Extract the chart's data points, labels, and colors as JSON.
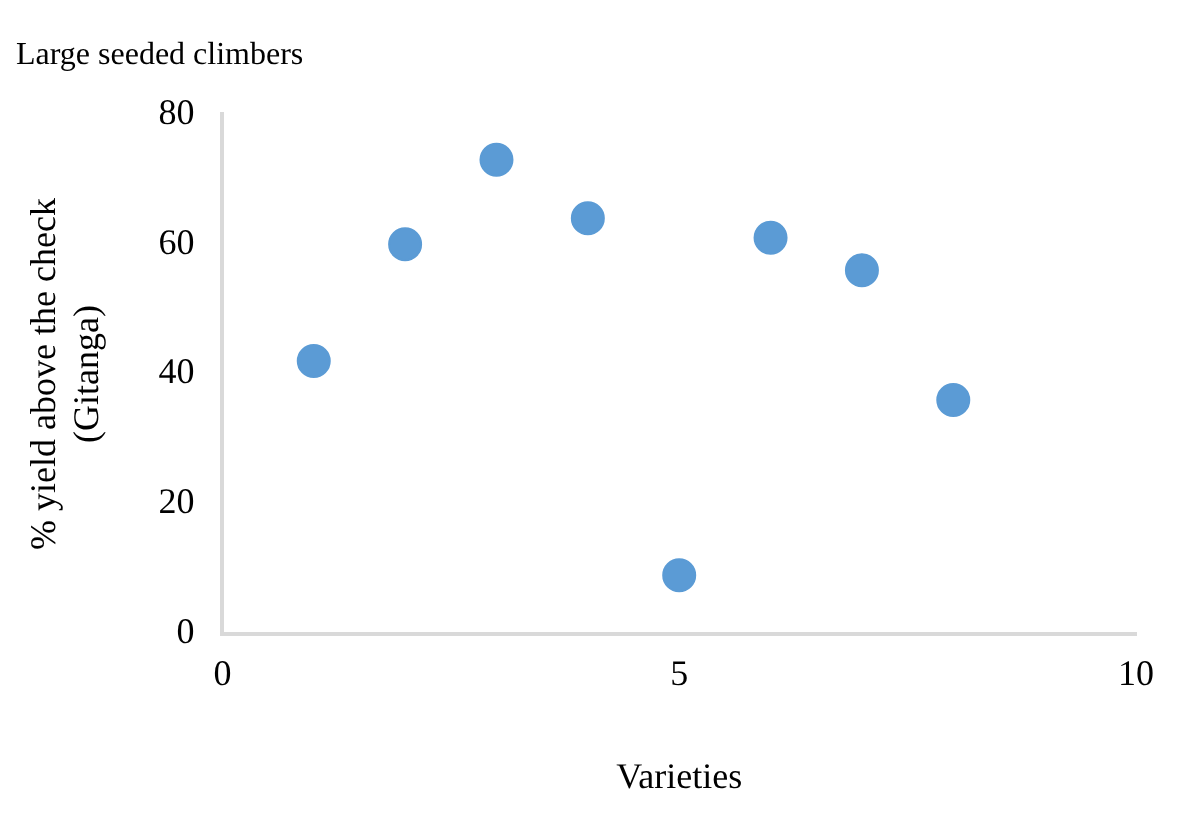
{
  "chart_data": {
    "type": "scatter",
    "title": "Large seeded climbers",
    "xlabel": "Varieties",
    "ylabel": "% yield above the check\n(Gitanga)",
    "x": [
      1,
      2,
      3,
      4,
      5,
      6,
      7,
      8
    ],
    "series": [
      {
        "color": "#5b9bd5",
        "values": [
          42,
          60,
          73,
          64,
          9,
          61,
          56,
          36
        ]
      }
    ],
    "xlim": [
      0,
      10
    ],
    "xticks": [
      0,
      5,
      10
    ],
    "ylim": [
      0,
      80
    ],
    "yticks": [
      0,
      20,
      40,
      60,
      80
    ],
    "grid": false,
    "legend": false,
    "marker": "circle"
  }
}
